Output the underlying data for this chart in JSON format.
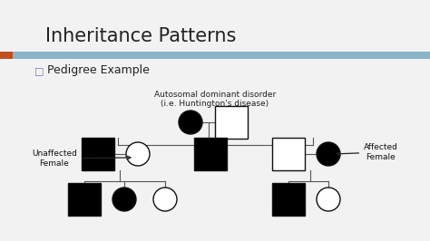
{
  "title": "Inheritance Patterns",
  "subtitle": "Pedigree Example",
  "annotation_text": "Autosomal dominant disorder\n(i.e. Huntington's disease)",
  "label_unaffected": "Unaffected\nFemale",
  "label_affected": "Affected\nFemale",
  "bg_color": "#f2f2f2",
  "header_bar_color": "#8ab4c9",
  "header_orange": "#c05020",
  "title_color": "#222222",
  "shape_black": "#000000",
  "shape_white": "#ffffff",
  "shape_edge": "#111111"
}
